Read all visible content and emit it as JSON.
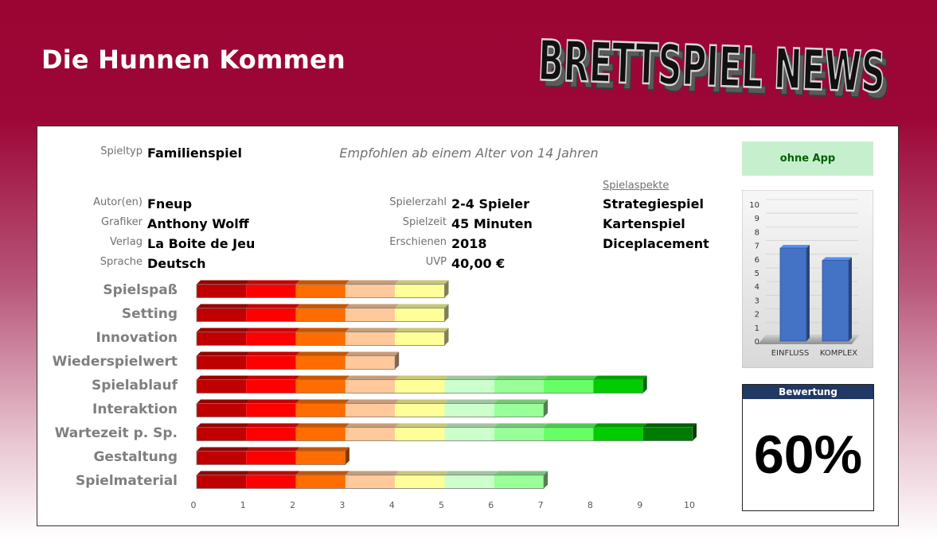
{
  "page_title": "Die Hunnen Kommen",
  "logo_text": "BRETTSPIEL NEWS",
  "info": {
    "spieltyp_label": "Spieltyp",
    "spieltyp_value": "Familienspiel",
    "recommend": "Empfohlen ab einem Alter von 14 Jahren",
    "autor_label": "Autor(en)",
    "autor_value": "Fneup",
    "grafiker_label": "Grafiker",
    "grafiker_value": "Anthony Wolff",
    "verlag_label": "Verlag",
    "verlag_value": "La Boite de Jeu",
    "sprache_label": "Sprache",
    "sprache_value": "Deutsch",
    "spielerzahl_label": "Spielerzahl",
    "spielerzahl_value": "2-4 Spieler",
    "spielzeit_label": "Spielzeit",
    "spielzeit_value": "45 Minuten",
    "erschienen_label": "Erschienen",
    "erschienen_value": "2018",
    "uvp_label": "UVP",
    "uvp_value": "40,00 €"
  },
  "aspects": {
    "title": "Spielaspekte",
    "items": [
      "Strategiespiel",
      "Kartenspiel",
      "Diceplacement"
    ]
  },
  "app_badge": "ohne App",
  "score": {
    "header": "Bewertung",
    "value": "60%"
  },
  "colors": {
    "segments": [
      "#c00000",
      "#ff0000",
      "#ff6d00",
      "#ffc99c",
      "#ffff99",
      "#ccffcc",
      "#99ff99",
      "#66ff66",
      "#00cc00",
      "#007a00"
    ],
    "mini_bar": "#4472c4"
  },
  "chart_data": [
    {
      "type": "bar",
      "orientation": "horizontal",
      "categories": [
        "Spielspaß",
        "Setting",
        "Innovation",
        "Wiederspielwert",
        "Spielablauf",
        "Interaktion",
        "Wartezeit p. Sp.",
        "Gestaltung",
        "Spielmaterial"
      ],
      "values": [
        5,
        5,
        5,
        4,
        9,
        7,
        10,
        3,
        7
      ],
      "xlim": [
        0,
        10
      ],
      "xticks": [
        0,
        1,
        2,
        3,
        4,
        5,
        6,
        7,
        8,
        9,
        10
      ],
      "segment_step": 1,
      "grid": false,
      "legend": "none"
    },
    {
      "type": "bar",
      "categories": [
        "EINFLUSS",
        "KOMPLEX"
      ],
      "values": [
        6.8,
        5.9
      ],
      "ylim": [
        0,
        10
      ],
      "yticks": [
        0,
        1,
        2,
        3,
        4,
        5,
        6,
        7,
        8,
        9,
        10
      ],
      "grid": true,
      "legend": "none"
    }
  ]
}
